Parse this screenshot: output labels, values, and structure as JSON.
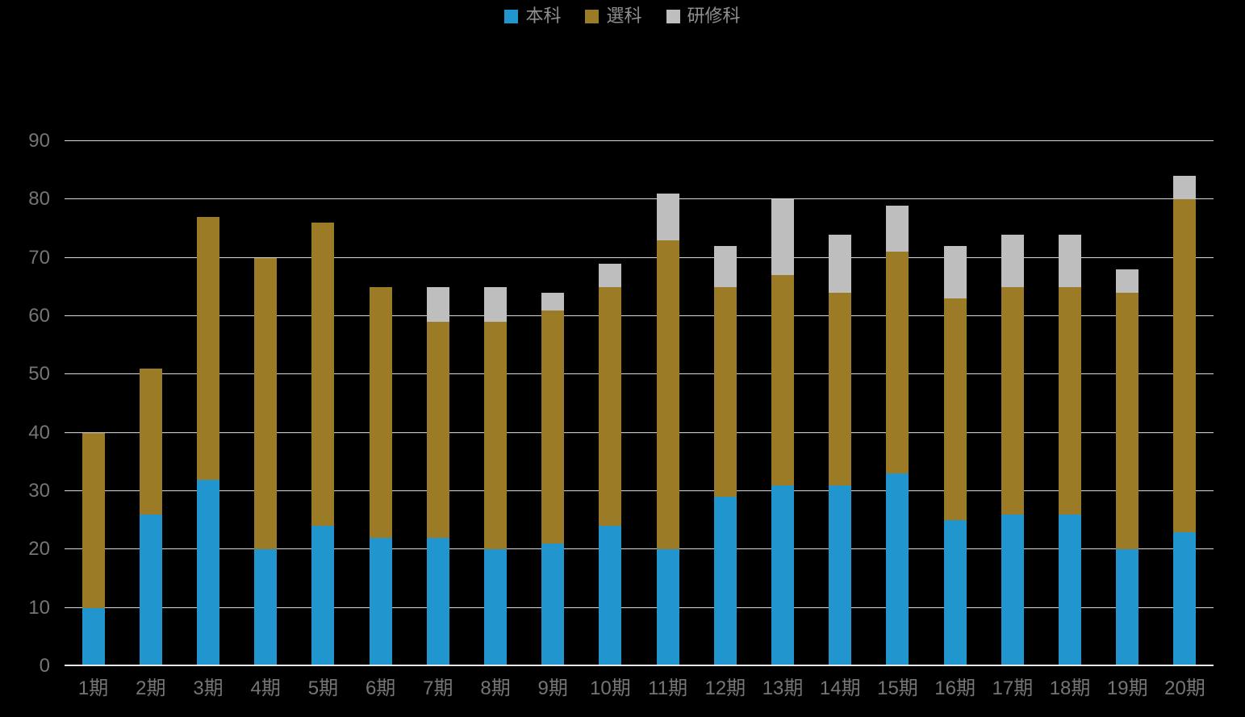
{
  "chart_data": {
    "type": "bar",
    "stacked": true,
    "title": "",
    "categories": [
      "1期",
      "2期",
      "3期",
      "4期",
      "5期",
      "6期",
      "7期",
      "8期",
      "9期",
      "10期",
      "11期",
      "12期",
      "13期",
      "14期",
      "15期",
      "16期",
      "17期",
      "18期",
      "19期",
      "20期"
    ],
    "series": [
      {
        "name": "本科",
        "color": "#2196CE",
        "values": [
          10,
          26,
          32,
          20,
          24,
          22,
          22,
          20,
          21,
          24,
          20,
          29,
          31,
          31,
          33,
          25,
          26,
          26,
          20,
          23
        ]
      },
      {
        "name": "選科",
        "color": "#9C7B26",
        "values": [
          30,
          25,
          45,
          50,
          52,
          43,
          37,
          39,
          40,
          41,
          53,
          36,
          36,
          33,
          38,
          38,
          39,
          39,
          44,
          57
        ]
      },
      {
        "name": "研修科",
        "color": "#BEBEBE",
        "values": [
          0,
          0,
          0,
          0,
          0,
          0,
          6,
          6,
          3,
          4,
          8,
          7,
          13,
          10,
          8,
          9,
          9,
          9,
          4,
          4
        ]
      }
    ],
    "totals": [
      40,
      51,
      77,
      70,
      76,
      65,
      65,
      65,
      64,
      69,
      81,
      72,
      80,
      74,
      79,
      72,
      74,
      74,
      68,
      84
    ],
    "xlabel": "",
    "ylabel": "",
    "ylim": [
      0,
      90
    ],
    "yticks": [
      0,
      10,
      20,
      30,
      40,
      50,
      60,
      70,
      80,
      90
    ],
    "grid": true,
    "legend_position": "top-center",
    "colors": {
      "background": "#000000",
      "gridline": "#D9D9D9",
      "axis_line": "#E8E8E8",
      "tick_label": "#757575",
      "legend_text": "#8F8F8F"
    }
  }
}
